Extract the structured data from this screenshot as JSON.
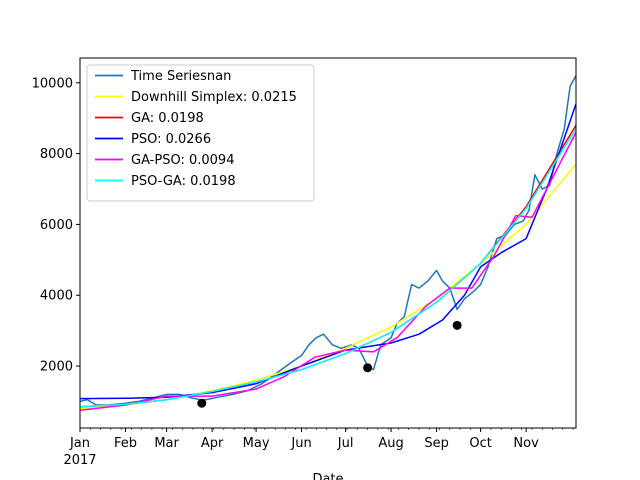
{
  "chart_data": {
    "type": "line",
    "title": "",
    "xlabel": "Date",
    "ylabel": "",
    "x_range": [
      "2017-01-01",
      "2017-12-05"
    ],
    "ylim": [
      250,
      10700
    ],
    "y_ticks": [
      2000,
      4000,
      6000,
      8000,
      10000
    ],
    "x_ticks": [
      {
        "date": "2017-01-01",
        "label": "Jan",
        "sublabel": "2017"
      },
      {
        "date": "2017-02-01",
        "label": "Feb"
      },
      {
        "date": "2017-03-01",
        "label": "Mar"
      },
      {
        "date": "2017-04-01",
        "label": "Apr"
      },
      {
        "date": "2017-05-01",
        "label": "May"
      },
      {
        "date": "2017-06-01",
        "label": "Jun"
      },
      {
        "date": "2017-07-01",
        "label": "Jul"
      },
      {
        "date": "2017-08-01",
        "label": "Aug"
      },
      {
        "date": "2017-09-01",
        "label": "Sep"
      },
      {
        "date": "2017-10-01",
        "label": "Oct"
      },
      {
        "date": "2017-11-01",
        "label": "Nov"
      }
    ],
    "grid": false,
    "legend_position": "top-left",
    "series": [
      {
        "name": "Time Seriesnan",
        "color": "#1f77b4",
        "x": [
          "2017-01-01",
          "2017-01-06",
          "2017-01-12",
          "2017-01-20",
          "2017-02-01",
          "2017-02-10",
          "2017-02-20",
          "2017-03-01",
          "2017-03-10",
          "2017-03-18",
          "2017-03-24",
          "2017-03-28",
          "2017-04-05",
          "2017-04-15",
          "2017-04-25",
          "2017-05-05",
          "2017-05-15",
          "2017-05-25",
          "2017-06-01",
          "2017-06-06",
          "2017-06-11",
          "2017-06-16",
          "2017-06-22",
          "2017-06-28",
          "2017-07-05",
          "2017-07-10",
          "2017-07-16",
          "2017-07-20",
          "2017-07-25",
          "2017-08-01",
          "2017-08-05",
          "2017-08-10",
          "2017-08-15",
          "2017-08-20",
          "2017-08-26",
          "2017-09-01",
          "2017-09-05",
          "2017-09-10",
          "2017-09-15",
          "2017-09-20",
          "2017-09-26",
          "2017-10-01",
          "2017-10-06",
          "2017-10-12",
          "2017-10-18",
          "2017-10-24",
          "2017-10-30",
          "2017-11-03",
          "2017-11-07",
          "2017-11-12",
          "2017-11-17",
          "2017-11-22",
          "2017-11-27",
          "2017-12-01",
          "2017-12-05"
        ],
        "values": [
          1000,
          1050,
          900,
          900,
          950,
          1000,
          1100,
          1200,
          1200,
          1100,
          1050,
          1050,
          1120,
          1200,
          1300,
          1500,
          1800,
          2100,
          2300,
          2600,
          2800,
          2900,
          2600,
          2500,
          2600,
          2500,
          2000,
          1900,
          2600,
          2800,
          3200,
          3400,
          4300,
          4200,
          4400,
          4700,
          4400,
          4200,
          3600,
          3900,
          4100,
          4300,
          4800,
          5600,
          5700,
          6000,
          6100,
          6400,
          7400,
          7000,
          7100,
          8000,
          8700,
          9900,
          10200
        ]
      },
      {
        "name": "Downhill Simplex: 0.0215",
        "color": "#ffff00",
        "x": [
          "2017-01-01",
          "2017-02-01",
          "2017-03-01",
          "2017-04-01",
          "2017-05-01",
          "2017-06-01",
          "2017-07-01",
          "2017-08-01",
          "2017-09-01",
          "2017-10-01",
          "2017-11-01",
          "2017-12-05"
        ],
        "values": [
          800,
          900,
          1050,
          1300,
          1600,
          2000,
          2500,
          3100,
          3900,
          4900,
          6000,
          7700
        ]
      },
      {
        "name": "GA: 0.0198",
        "color": "#ff0000",
        "x": [
          "2017-01-01",
          "2017-02-01",
          "2017-03-01",
          "2017-04-01",
          "2017-05-01",
          "2017-06-01",
          "2017-07-01",
          "2017-08-01",
          "2017-09-01",
          "2017-10-01",
          "2017-11-01",
          "2017-12-05"
        ],
        "values": [
          850,
          920,
          1050,
          1280,
          1550,
          1900,
          2350,
          2950,
          3800,
          4900,
          6500,
          8800
        ]
      },
      {
        "name": "PSO: 0.0266",
        "color": "#0000ff",
        "x": [
          "2017-01-01",
          "2017-02-01",
          "2017-03-01",
          "2017-04-01",
          "2017-05-01",
          "2017-06-01",
          "2017-07-01",
          "2017-08-01",
          "2017-08-20",
          "2017-09-05",
          "2017-09-20",
          "2017-10-01",
          "2017-10-15",
          "2017-11-01",
          "2017-11-15",
          "2017-12-05"
        ],
        "values": [
          1080,
          1090,
          1120,
          1250,
          1500,
          2000,
          2450,
          2650,
          2900,
          3300,
          4000,
          4800,
          5200,
          5600,
          7000,
          9400
        ]
      },
      {
        "name": "GA-PSO: 0.0094",
        "color": "#ff00ff",
        "x": [
          "2017-01-01",
          "2017-02-01",
          "2017-03-01",
          "2017-04-01",
          "2017-05-01",
          "2017-05-20",
          "2017-06-10",
          "2017-07-01",
          "2017-07-20",
          "2017-08-05",
          "2017-08-25",
          "2017-09-10",
          "2017-09-25",
          "2017-10-10",
          "2017-10-25",
          "2017-11-05",
          "2017-11-15",
          "2017-12-05"
        ],
        "values": [
          750,
          900,
          1150,
          1150,
          1350,
          1700,
          2250,
          2450,
          2400,
          2800,
          3700,
          4200,
          4200,
          5100,
          6250,
          6200,
          7000,
          8600
        ]
      },
      {
        "name": "PSO-GA: 0.0198",
        "color": "#00ffff",
        "x": [
          "2017-01-01",
          "2017-02-01",
          "2017-03-01",
          "2017-04-01",
          "2017-05-01",
          "2017-06-01",
          "2017-07-01",
          "2017-08-01",
          "2017-09-01",
          "2017-10-01",
          "2017-11-01",
          "2017-12-05"
        ],
        "values": [
          850,
          920,
          1050,
          1280,
          1550,
          1900,
          2350,
          2950,
          3800,
          4900,
          6450,
          8700
        ]
      },
      {
        "name": "",
        "color": "#000000",
        "type": "scatter",
        "x": [
          "2017-03-25",
          "2017-07-16",
          "2017-09-15"
        ],
        "values": [
          950,
          1950,
          3150
        ]
      }
    ]
  }
}
